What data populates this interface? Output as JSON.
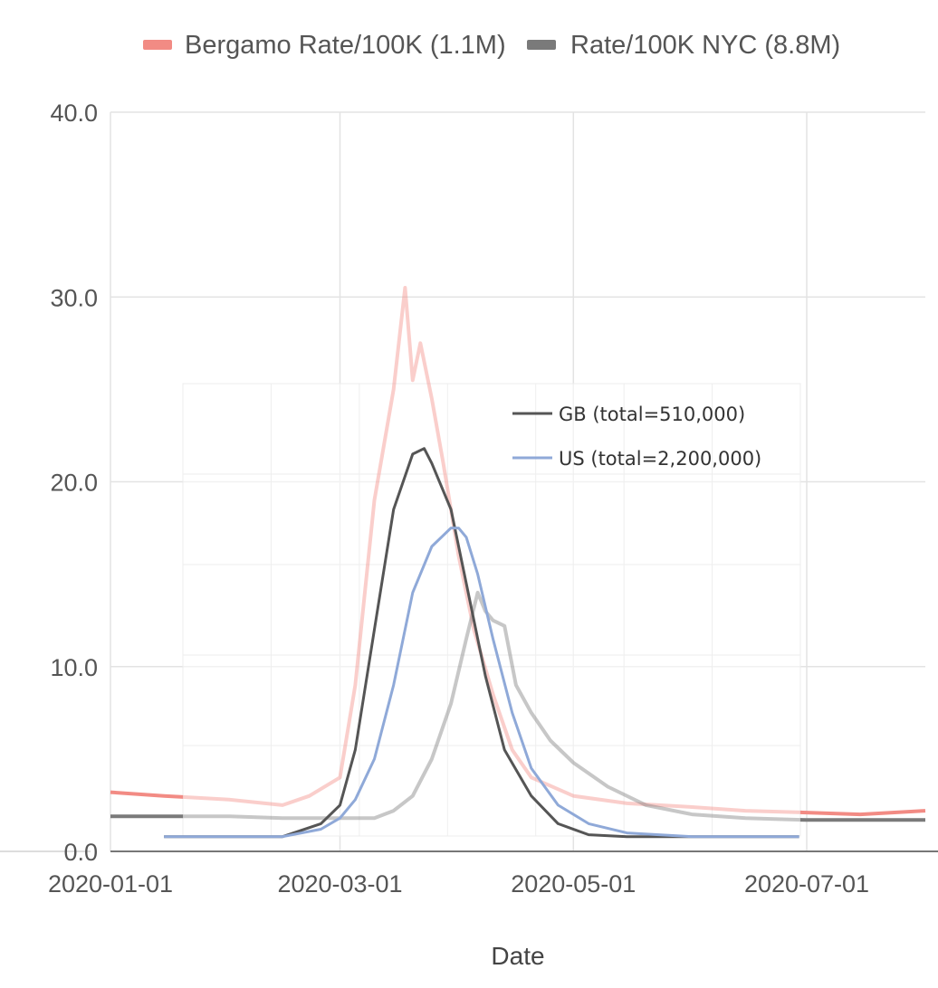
{
  "chart_data": [
    {
      "type": "line",
      "role": "main",
      "xlabel": "Date",
      "ylabel": "",
      "x_ticks": [
        "2020-01-01",
        "2020-03-01",
        "2020-05-01",
        "2020-07-01"
      ],
      "y_ticks": [
        "0.0",
        "10.0",
        "20.0",
        "30.0",
        "40.0"
      ],
      "xlim": [
        "2020-01-01",
        "2020-08-01"
      ],
      "ylim": [
        0,
        40
      ],
      "grid": true,
      "legend": "top",
      "colors": {
        "bergamo": "#f28b84",
        "nyc": "#7a7a7a"
      },
      "series": [
        {
          "name": "Bergamo Rate/100K (1.1M)",
          "x": [
            "2020-01-01",
            "2020-01-15",
            "2020-02-01",
            "2020-02-15",
            "2020-02-22",
            "2020-03-01",
            "2020-03-05",
            "2020-03-10",
            "2020-03-15",
            "2020-03-18",
            "2020-03-20",
            "2020-03-22",
            "2020-03-25",
            "2020-03-28",
            "2020-04-01",
            "2020-04-05",
            "2020-04-10",
            "2020-04-15",
            "2020-04-20",
            "2020-05-01",
            "2020-05-15",
            "2020-06-01",
            "2020-06-15",
            "2020-07-01",
            "2020-07-15",
            "2020-08-01"
          ],
          "values": [
            3.2,
            3.0,
            2.8,
            2.5,
            3.0,
            4.0,
            9.0,
            19.0,
            25.0,
            30.5,
            25.5,
            27.5,
            24.5,
            21.0,
            16.0,
            12.0,
            8.5,
            5.5,
            4.0,
            3.0,
            2.6,
            2.4,
            2.2,
            2.1,
            2.0,
            2.2
          ]
        },
        {
          "name": "Rate/100K NYC (8.8M)",
          "x": [
            "2020-01-01",
            "2020-01-15",
            "2020-02-01",
            "2020-02-15",
            "2020-03-01",
            "2020-03-10",
            "2020-03-15",
            "2020-03-20",
            "2020-03-25",
            "2020-03-30",
            "2020-04-03",
            "2020-04-06",
            "2020-04-08",
            "2020-04-10",
            "2020-04-13",
            "2020-04-16",
            "2020-04-20",
            "2020-04-25",
            "2020-05-01",
            "2020-05-10",
            "2020-05-20",
            "2020-06-01",
            "2020-06-15",
            "2020-07-01",
            "2020-07-15",
            "2020-08-01"
          ],
          "values": [
            1.9,
            1.9,
            1.9,
            1.8,
            1.8,
            1.8,
            2.2,
            3.0,
            5.0,
            8.0,
            11.5,
            14.0,
            13.0,
            12.5,
            12.2,
            9.0,
            7.5,
            6.0,
            4.8,
            3.5,
            2.5,
            2.0,
            1.8,
            1.7,
            1.7,
            1.7
          ]
        }
      ]
    },
    {
      "type": "line",
      "role": "inset",
      "grid": true,
      "legend": "top-right",
      "colors": {
        "gb": "#555555",
        "us": "#8fa9d8"
      },
      "series": [
        {
          "name": "GB (total=510,000)",
          "x": [
            "2020-01-15",
            "2020-02-15",
            "2020-02-25",
            "2020-03-01",
            "2020-03-05",
            "2020-03-10",
            "2020-03-15",
            "2020-03-20",
            "2020-03-23",
            "2020-03-25",
            "2020-03-30",
            "2020-04-03",
            "2020-04-08",
            "2020-04-13",
            "2020-04-20",
            "2020-04-27",
            "2020-05-05",
            "2020-05-15",
            "2020-06-01",
            "2020-06-15",
            "2020-06-29"
          ],
          "values": [
            0.8,
            0.8,
            1.5,
            2.5,
            5.5,
            12.0,
            18.5,
            21.5,
            21.8,
            21.0,
            18.5,
            14.5,
            9.5,
            5.5,
            3.0,
            1.5,
            0.9,
            0.8,
            0.8,
            0.8,
            0.8
          ]
        },
        {
          "name": "US (total=2,200,000)",
          "x": [
            "2020-01-15",
            "2020-02-15",
            "2020-02-25",
            "2020-03-01",
            "2020-03-05",
            "2020-03-10",
            "2020-03-15",
            "2020-03-20",
            "2020-03-25",
            "2020-03-30",
            "2020-04-01",
            "2020-04-03",
            "2020-04-06",
            "2020-04-10",
            "2020-04-15",
            "2020-04-20",
            "2020-04-27",
            "2020-05-05",
            "2020-05-15",
            "2020-06-01",
            "2020-06-15",
            "2020-06-29"
          ],
          "values": [
            0.8,
            0.8,
            1.2,
            1.8,
            2.8,
            5.0,
            9.0,
            14.0,
            16.5,
            17.5,
            17.5,
            17.0,
            15.0,
            11.5,
            7.5,
            4.5,
            2.5,
            1.5,
            1.0,
            0.8,
            0.8,
            0.8
          ]
        }
      ]
    }
  ]
}
